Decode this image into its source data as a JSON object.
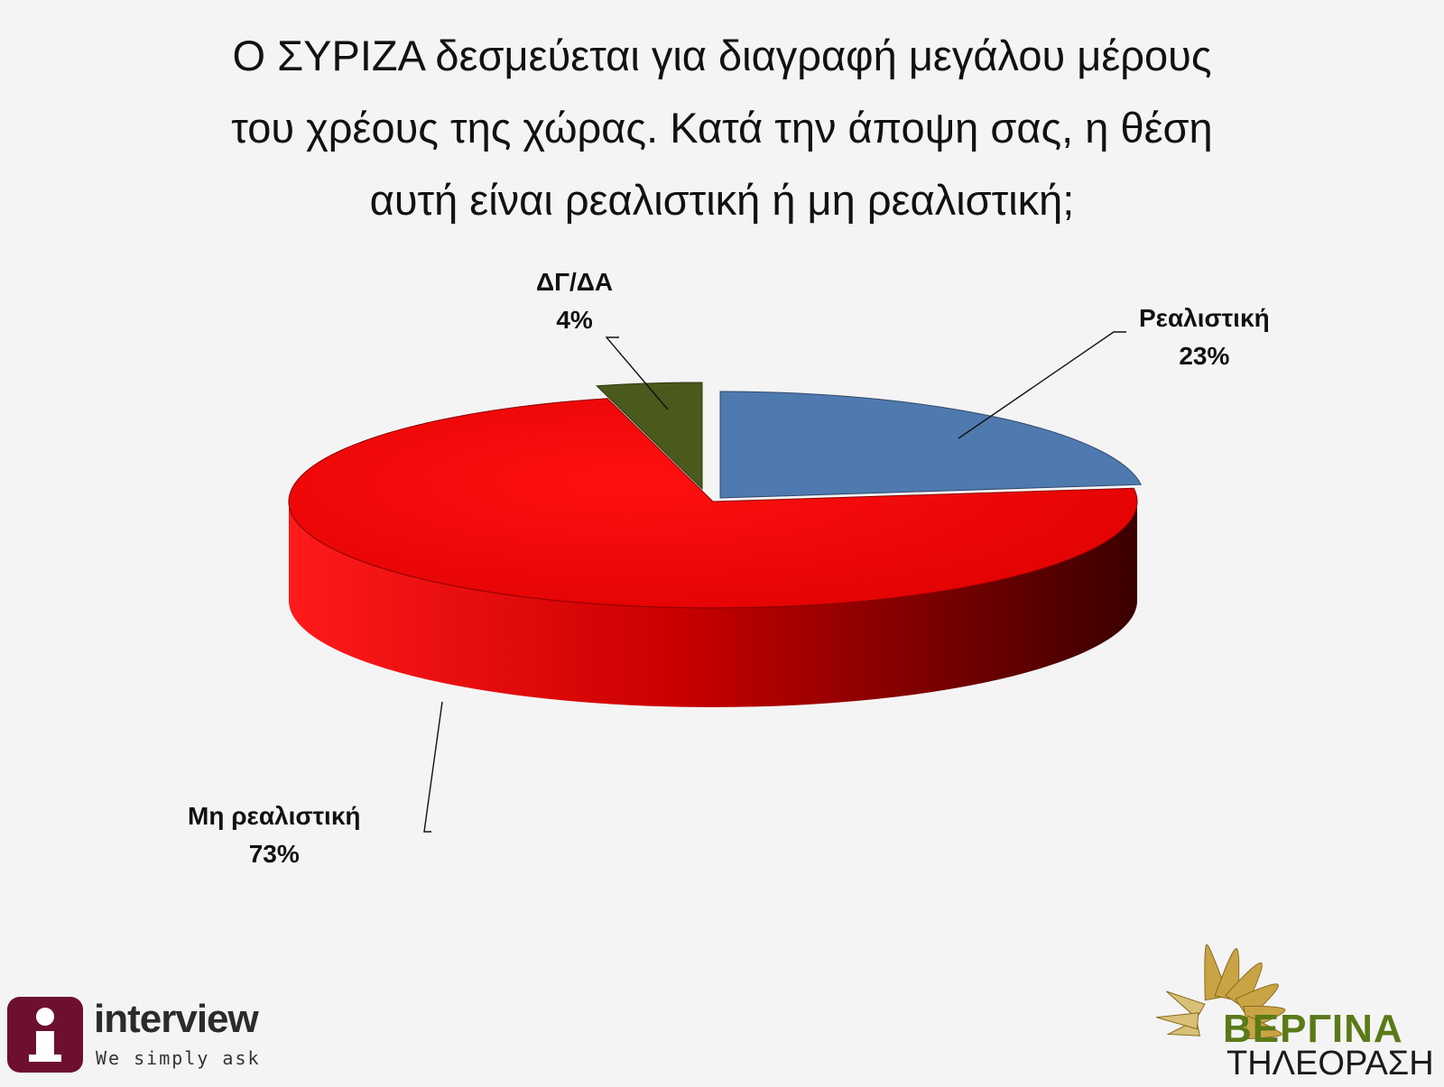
{
  "title_lines": [
    "Ο ΣΥΡΙΖΑ δεσμεύεται για διαγραφή μεγάλου μέρους",
    "του χρέους της χώρας. Κατά την άποψη σας, η θέση",
    "αυτή είναι ρεαλιστική ή μη ρεαλιστική;"
  ],
  "chart_data": {
    "type": "pie",
    "title": "Ο ΣΥΡΙΖΑ δεσμεύεται για διαγραφή μεγάλου μέρους του χρέους της χώρας. Κατά την άποψη σας, η θέση αυτή είναι ρεαλιστική ή μη ρεαλιστική;",
    "style": "3d-exploded",
    "slices": [
      {
        "label": "Ρεαλιστική",
        "value": 23,
        "value_label": "23%",
        "color": "#4f7ab0"
      },
      {
        "label": "Μη ρεαλιστική",
        "value": 73,
        "value_label": "73%",
        "color": "#e60000"
      },
      {
        "label": "ΔΓ/ΔΑ",
        "value": 4,
        "value_label": "4%",
        "color": "#4a5a1c"
      }
    ],
    "legend": "none"
  },
  "logos": {
    "interview": {
      "name": "interview",
      "tagline": "We simply ask",
      "color": "#6d1030"
    },
    "vergina": {
      "name": "ΒΕΡΓΙΝΑ",
      "subtitle": "ΤΗΛΕΟΡΑΣΗ",
      "color": "#5a7a18"
    }
  }
}
